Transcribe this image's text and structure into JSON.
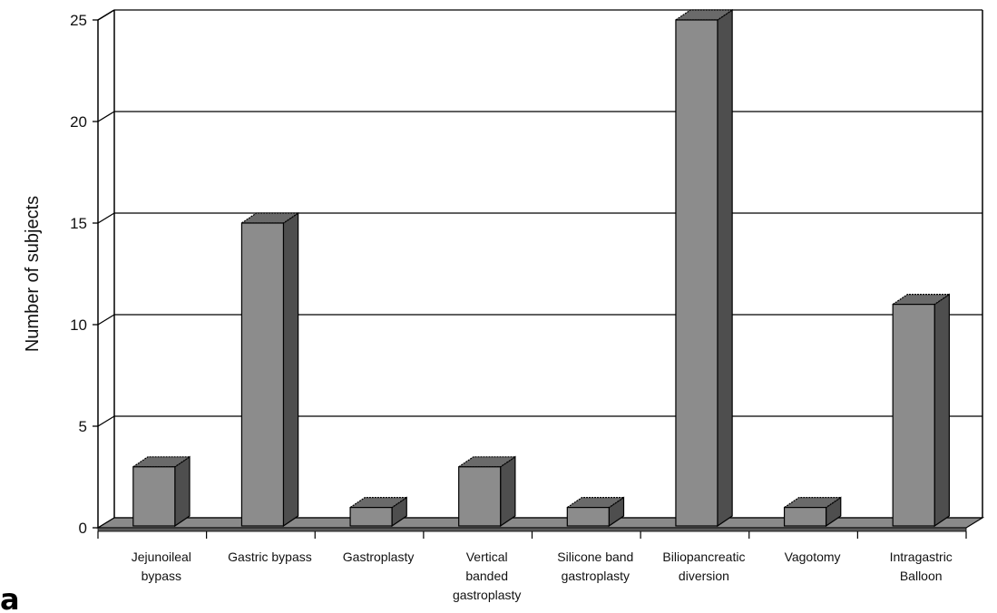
{
  "panel_label": "a",
  "chart_data": {
    "type": "bar",
    "categories": [
      [
        "Jejunoileal",
        "bypass"
      ],
      [
        "Gastric bypass"
      ],
      [
        "Gastroplasty"
      ],
      [
        "Vertical",
        "banded",
        "gastroplasty"
      ],
      [
        "Silicone band",
        "gastroplasty"
      ],
      [
        "Biliopancreatic",
        "diversion"
      ],
      [
        "Vagotomy"
      ],
      [
        "Intragastric",
        "Balloon"
      ]
    ],
    "values": [
      3,
      15,
      1,
      3,
      1,
      25,
      1,
      11
    ],
    "ylabel": "Number of subjects",
    "xlabel": "",
    "ylim": [
      0,
      25
    ],
    "yticks": [
      0,
      5,
      10,
      15,
      20,
      25
    ],
    "grid": true,
    "bar_color": "#8c8c8c",
    "bar_side_color": "#4e4e4e",
    "bar_top_color": "#6a6a6a"
  }
}
